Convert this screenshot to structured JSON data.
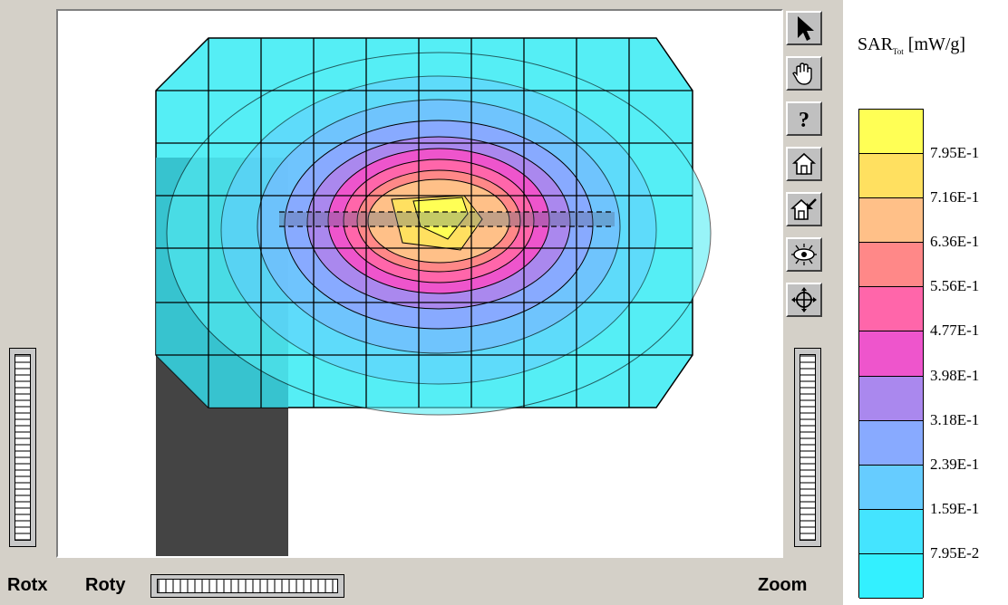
{
  "legend": {
    "title_main": "SAR",
    "title_sub": "Tot",
    "title_unit": " [mW/g]",
    "colors": [
      "#ffff55",
      "#ffe060",
      "#ffc088",
      "#ff8888",
      "#ff66aa",
      "#ee55cc",
      "#aa88ee",
      "#88aaff",
      "#66ccff",
      "#44e4ff",
      "#33f0ff"
    ],
    "ticks": [
      "7.95E-1",
      "7.16E-1",
      "6.36E-1",
      "5.56E-1",
      "4.77E-1",
      "3.98E-1",
      "3.18E-1",
      "2.39E-1",
      "1.59E-1",
      "7.95E-2"
    ]
  },
  "controls": {
    "rotx_label": "Rotx",
    "roty_label": "Roty",
    "zoom_label": "Zoom"
  },
  "toolbar": {
    "tools": [
      "arrow-pointer-icon",
      "hand-icon",
      "help-icon",
      "home-icon",
      "home-zoom-icon",
      "eye-view-icon",
      "crosshair-icon"
    ]
  },
  "colors": {
    "viewer_bg": "#d4d0c8",
    "grid_cyan": "#55eef5",
    "shadow_teal": "#33bbc8",
    "probe_dark": "#444444"
  }
}
